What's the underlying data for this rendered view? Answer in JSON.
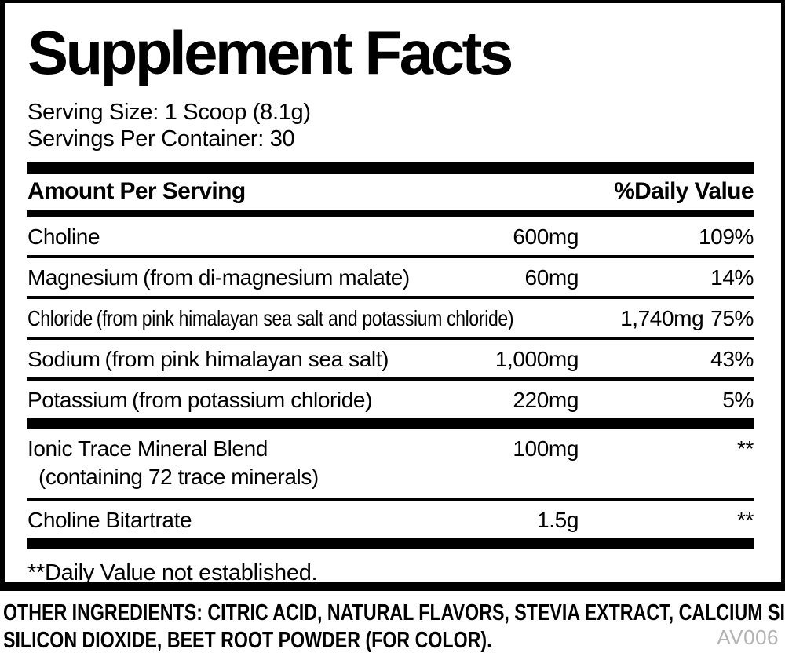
{
  "panel": {
    "title": "Supplement Facts",
    "serving_size": "Serving Size: 1 Scoop (8.1g)",
    "servings_per_container": "Servings Per Container: 30",
    "columns": {
      "amount_header": "Amount Per Serving",
      "dv_header": "%Daily Value"
    },
    "rows": [
      {
        "name": "Choline",
        "detail": "",
        "amount": "600mg",
        "dv": "109%"
      },
      {
        "name": "Magnesium",
        "detail": "(from di-magnesium malate)",
        "amount": "60mg",
        "dv": "14%"
      },
      {
        "name": "Chloride",
        "detail": "(from pink himalayan sea salt and potassium chloride)",
        "amount": "1,740mg",
        "dv": "75%"
      },
      {
        "name": "Sodium",
        "detail": "(from pink himalayan sea salt)",
        "amount": "1,000mg",
        "dv": "43%"
      },
      {
        "name": "Potassium",
        "detail": "(from potassium chloride)",
        "amount": "220mg",
        "dv": "5%"
      },
      {
        "name": "Ionic Trace Mineral Blend",
        "sub": "(containing 72 trace minerals)",
        "amount": "100mg",
        "dv": "**"
      },
      {
        "name": "Choline Bitartrate",
        "detail": "",
        "amount": "1.5g",
        "dv": "**"
      }
    ],
    "footnote": "**Daily Value not established.",
    "colors": {
      "rule_black": "#000000",
      "background": "#ffffff",
      "code_gray": "#b3b3b3"
    }
  },
  "footer": {
    "other_ingredients_line1": "OTHER INGREDIENTS: CITRIC ACID, NATURAL FLAVORS, STEVIA EXTRACT, CALCIUM SILICATE,",
    "other_ingredients_line2": "SILICON DIOXIDE, BEET ROOT POWDER (FOR COLOR).",
    "code": "AV006"
  }
}
